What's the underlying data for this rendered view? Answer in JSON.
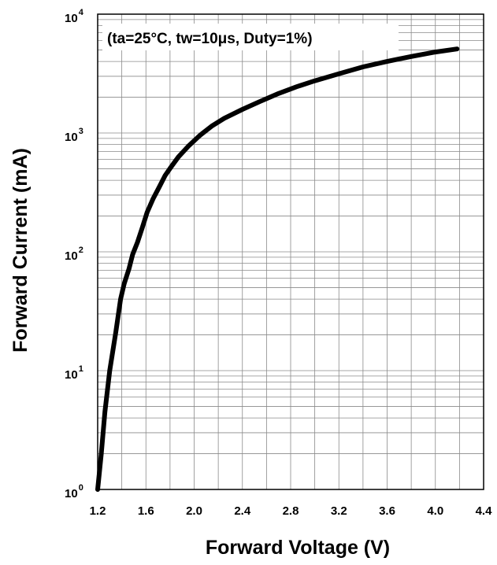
{
  "chart_data": {
    "type": "line",
    "xlabel": "Forward Voltage (V)",
    "ylabel": "Forward Current (mA)",
    "annotation": "(ta=25°C, tw=10μs, Duty=1%)",
    "xlim": [
      1.2,
      4.4
    ],
    "ylim": [
      1,
      10000
    ],
    "yscale": "log",
    "grid": true,
    "x_ticks": [
      "1.2",
      "1.6",
      "2.0",
      "2.4",
      "2.8",
      "3.2",
      "3.6",
      "4.0",
      "4.4"
    ],
    "y_ticks": [
      {
        "base": "10",
        "exp": "0"
      },
      {
        "base": "10",
        "exp": "1"
      },
      {
        "base": "10",
        "exp": "2"
      },
      {
        "base": "10",
        "exp": "3"
      },
      {
        "base": "10",
        "exp": "4"
      }
    ],
    "series": [
      {
        "x": [
          1.2,
          1.23,
          1.26,
          1.3,
          1.35,
          1.39,
          1.42,
          1.46,
          1.49,
          1.53,
          1.57,
          1.61,
          1.66,
          1.71,
          1.76,
          1.81,
          1.87,
          1.95,
          2.05,
          2.15,
          2.25,
          2.4,
          2.55,
          2.7,
          2.85,
          3.0,
          3.2,
          3.4,
          3.6,
          3.8,
          4.0,
          4.18
        ],
        "y": [
          1.0,
          2.0,
          4.5,
          10,
          21,
          40,
          54,
          72,
          95,
          120,
          160,
          215,
          280,
          350,
          440,
          520,
          630,
          770,
          960,
          1150,
          1330,
          1580,
          1850,
          2150,
          2450,
          2750,
          3150,
          3600,
          4000,
          4400,
          4800,
          5100
        ]
      }
    ]
  }
}
